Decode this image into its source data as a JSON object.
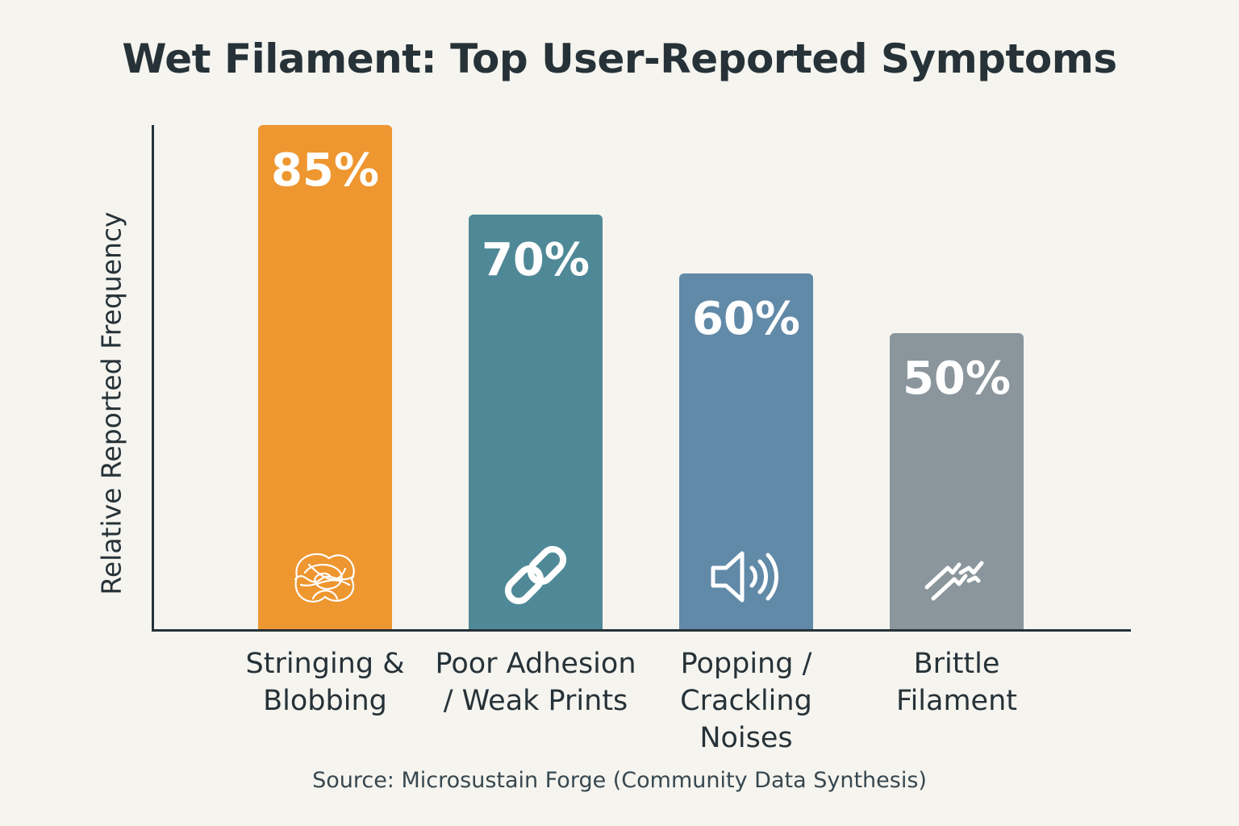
{
  "chart_data": {
    "type": "bar",
    "title": "Wet Filament: Top User-Reported Symptoms",
    "ylabel": "Relative Reported Frequency",
    "xlabel": "",
    "ylim": [
      0,
      100
    ],
    "grid": false,
    "legend": "none",
    "categories": [
      "Stringing & Blobbing",
      "Poor Adhesion / Weak Prints",
      "Popping / Crackling Noises",
      "Brittle Filament"
    ],
    "category_lines": [
      "Stringing &\nBlobbing",
      "Poor Adhesion\n/ Weak Prints",
      "Popping /\nCrackling\nNoises",
      "Brittle\nFilament"
    ],
    "values": [
      85,
      70,
      60,
      50
    ],
    "value_labels": [
      "85%",
      "70%",
      "60%",
      "50%"
    ],
    "colors": [
      "#ee962f",
      "#4f8997",
      "#6189a8",
      "#8a959c"
    ],
    "icons": [
      "tangled-string-icon",
      "chain-link-icon",
      "speaker-sound-icon",
      "broken-filament-icon"
    ],
    "source": "Source: Microsustain Forge (Community Data Synthesis)"
  }
}
